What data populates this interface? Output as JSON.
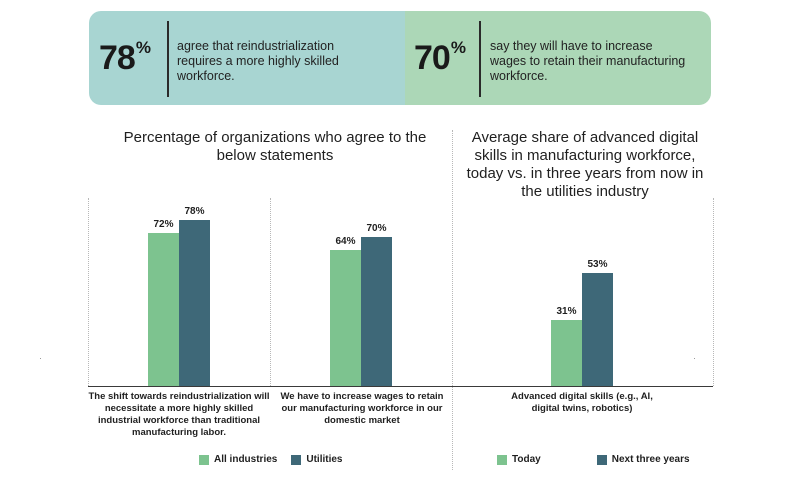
{
  "banner": {
    "left": {
      "value": "78",
      "suffix": "%",
      "text": "agree that reindustrialization requires a more highly skilled workforce."
    },
    "right": {
      "value": "70",
      "suffix": "%",
      "text": "say they will have to increase wages to retain their manufacturing workforce."
    }
  },
  "colors": {
    "primary": "#7dc38f",
    "secondary": "#3e6878",
    "banner_left": "#a8d5d2",
    "banner_right": "#acd7b7"
  },
  "chart_data": [
    {
      "type": "bar",
      "title": "Percentage of organizations who agree to the below statements",
      "categories": [
        "The shift towards reindustrialization will necessitate a more highly skilled industrial workforce than traditional manufacturing labor.",
        "We have to increase wages to retain our manufacturing workforce in our domestic market"
      ],
      "series": [
        {
          "name": "All industries",
          "values": [
            72,
            64
          ]
        },
        {
          "name": "Utilities",
          "values": [
            78,
            70
          ]
        }
      ],
      "value_suffix": "%",
      "ylim": [
        0,
        100
      ]
    },
    {
      "type": "bar",
      "title": "Average share of advanced digital skills in manufacturing workforce, today vs. in three years from now in the utilities industry",
      "categories": [
        "Advanced digital skills (e.g., AI, digital twins, robotics)"
      ],
      "series": [
        {
          "name": "Today",
          "values": [
            31
          ]
        },
        {
          "name": "Next three years",
          "values": [
            53
          ]
        }
      ],
      "value_suffix": "%",
      "ylim": [
        0,
        100
      ]
    }
  ]
}
